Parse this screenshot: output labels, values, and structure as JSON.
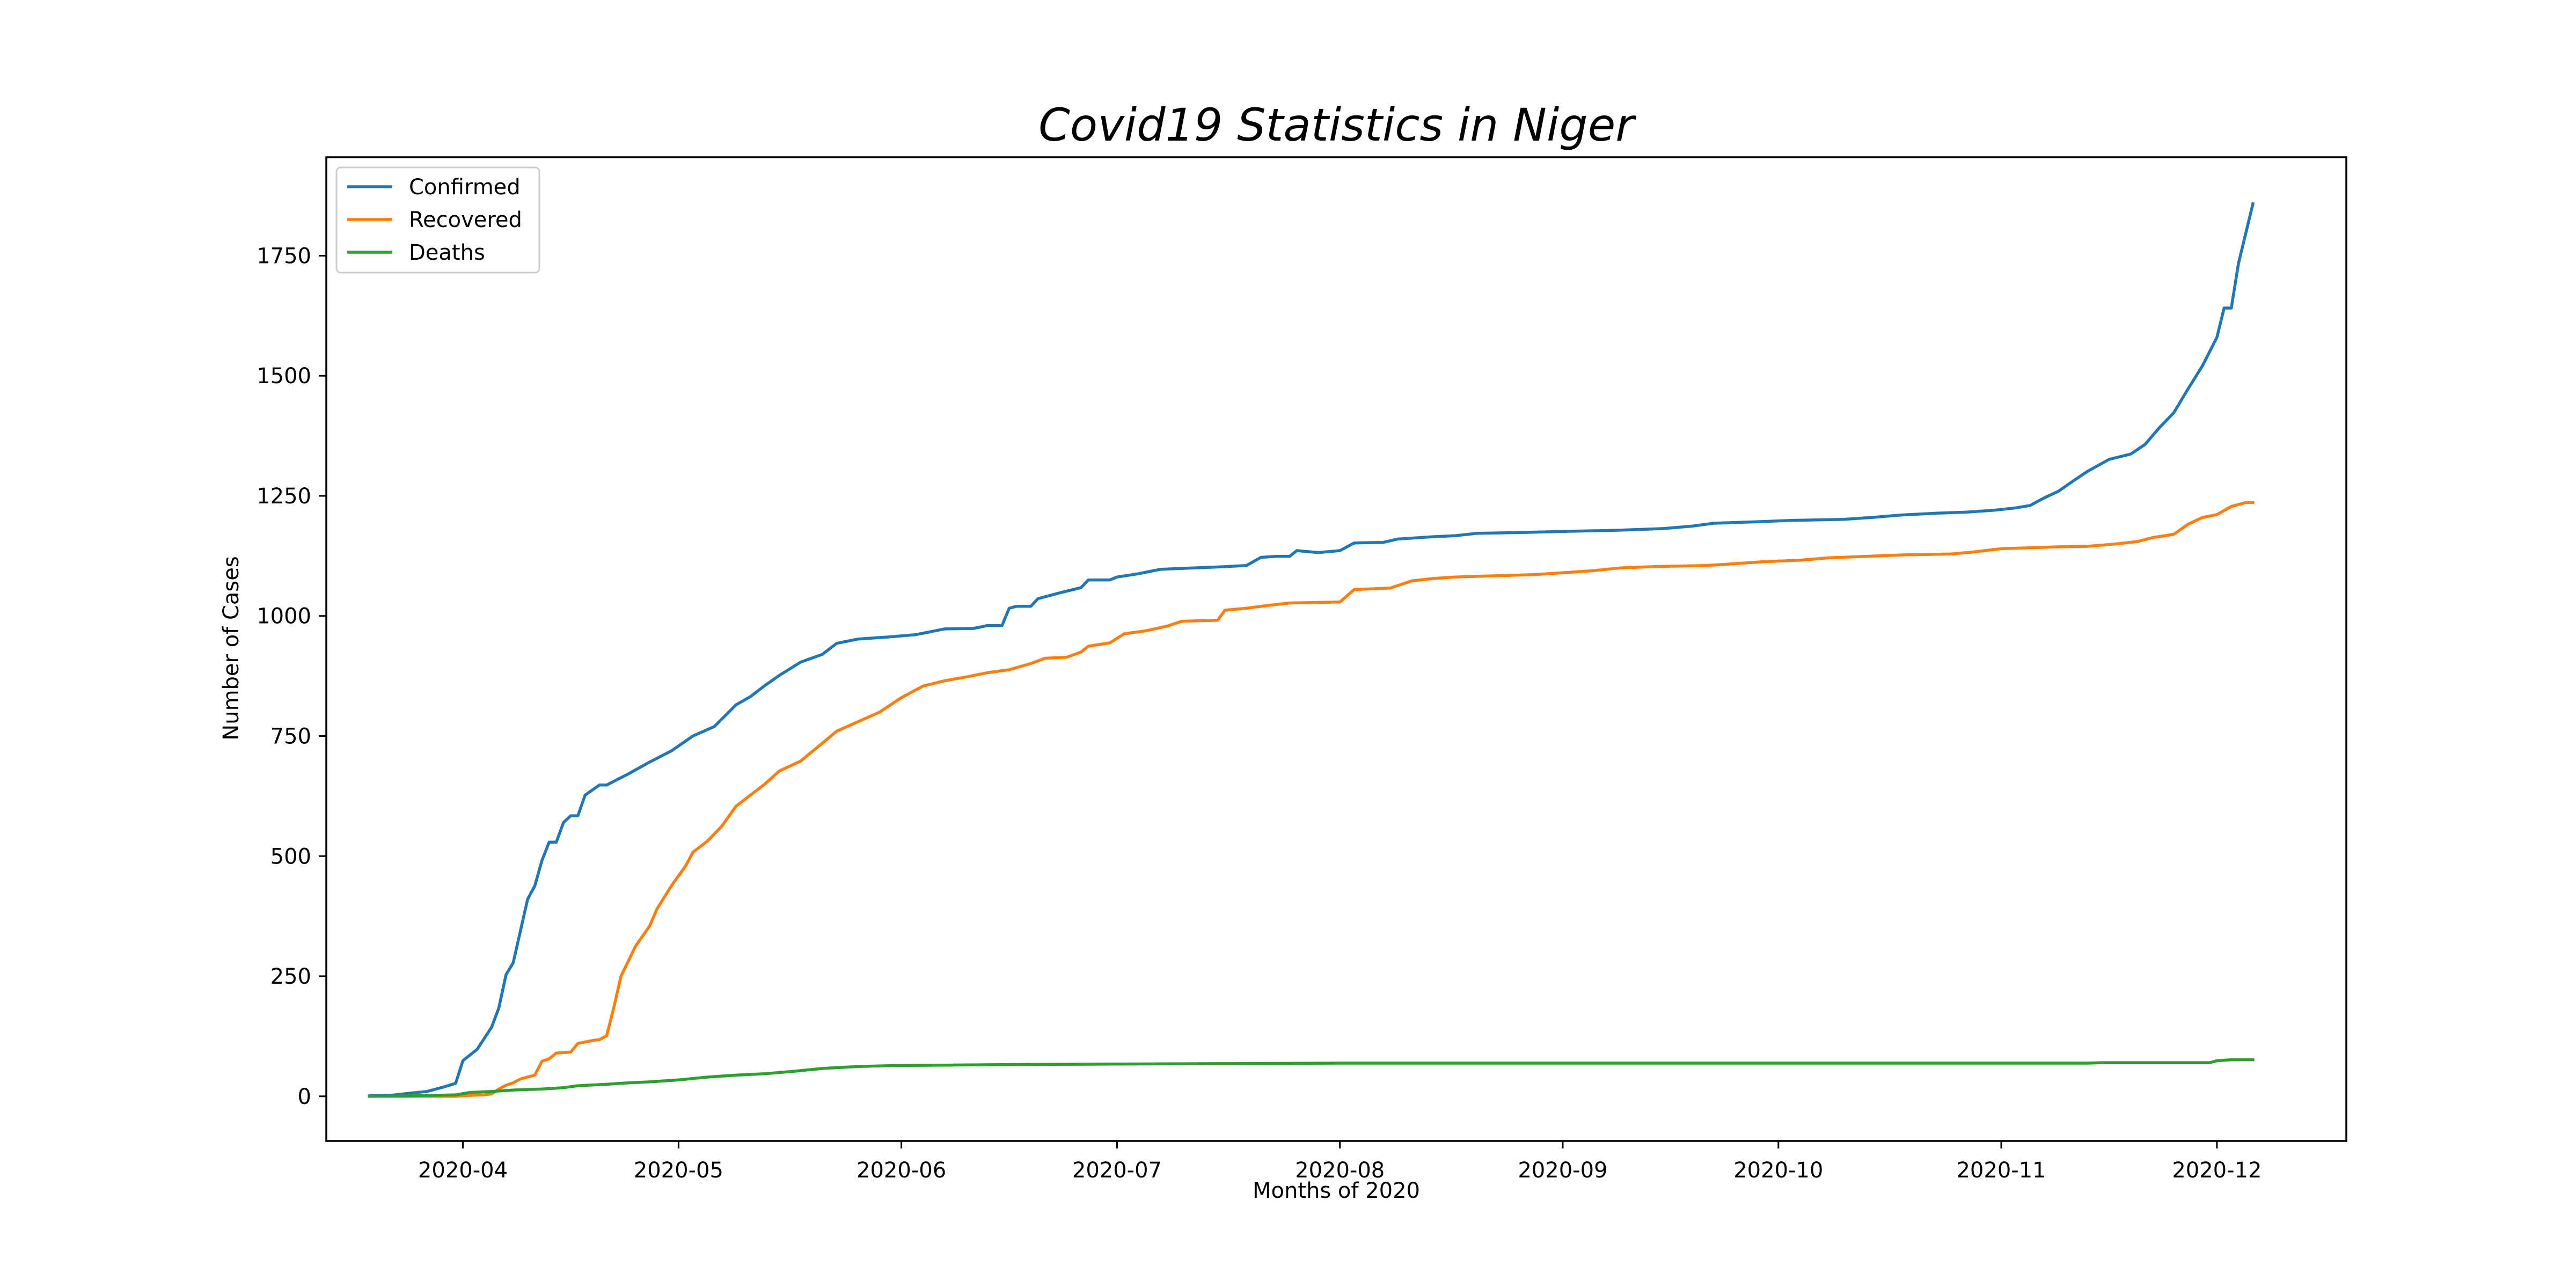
{
  "chart_data": {
    "type": "line",
    "title": "Covid19 Statistics in Niger",
    "xlabel": "Months of 2020",
    "ylabel": "Number of Cases",
    "x_type": "date",
    "xlim": [
      "2020-03-13",
      "2020-12-19"
    ],
    "ylim": [
      -93,
      1955
    ],
    "x_ticks": [
      "2020-04-01",
      "2020-05-01",
      "2020-06-01",
      "2020-07-01",
      "2020-08-01",
      "2020-09-01",
      "2020-10-01",
      "2020-11-01",
      "2020-12-01"
    ],
    "x_tick_labels": [
      "2020-04",
      "2020-05",
      "2020-06",
      "2020-07",
      "2020-08",
      "2020-09",
      "2020-10",
      "2020-11",
      "2020-12"
    ],
    "y_ticks": [
      0,
      250,
      500,
      750,
      1000,
      1250,
      1500,
      1750
    ],
    "y_tick_labels": [
      "0",
      "250",
      "500",
      "750",
      "1000",
      "1250",
      "1500",
      "1750"
    ],
    "grid": false,
    "legend_position": "top-left",
    "series": [
      {
        "name": "Confirmed",
        "color": "#1f77b4",
        "points": [
          [
            "2020-03-19",
            1
          ],
          [
            "2020-03-22",
            2
          ],
          [
            "2020-03-25",
            7
          ],
          [
            "2020-03-27",
            10
          ],
          [
            "2020-03-29",
            18
          ],
          [
            "2020-03-31",
            27
          ],
          [
            "2020-04-01",
            74
          ],
          [
            "2020-04-03",
            98
          ],
          [
            "2020-04-05",
            144
          ],
          [
            "2020-04-06",
            184
          ],
          [
            "2020-04-07",
            253
          ],
          [
            "2020-04-08",
            278
          ],
          [
            "2020-04-10",
            410
          ],
          [
            "2020-04-11",
            438
          ],
          [
            "2020-04-12",
            491
          ],
          [
            "2020-04-13",
            529
          ],
          [
            "2020-04-14",
            529
          ],
          [
            "2020-04-15",
            570
          ],
          [
            "2020-04-16",
            584
          ],
          [
            "2020-04-17",
            584
          ],
          [
            "2020-04-18",
            627
          ],
          [
            "2020-04-20",
            648
          ],
          [
            "2020-04-21",
            648
          ],
          [
            "2020-04-24",
            671
          ],
          [
            "2020-04-27",
            696
          ],
          [
            "2020-04-30",
            719
          ],
          [
            "2020-05-03",
            750
          ],
          [
            "2020-05-06",
            770
          ],
          [
            "2020-05-09",
            815
          ],
          [
            "2020-05-11",
            832
          ],
          [
            "2020-05-13",
            855
          ],
          [
            "2020-05-15",
            876
          ],
          [
            "2020-05-18",
            904
          ],
          [
            "2020-05-21",
            920
          ],
          [
            "2020-05-23",
            943
          ],
          [
            "2020-05-26",
            952
          ],
          [
            "2020-05-30",
            956
          ],
          [
            "2020-06-03",
            961
          ],
          [
            "2020-06-05",
            967
          ],
          [
            "2020-06-07",
            973
          ],
          [
            "2020-06-11",
            974
          ],
          [
            "2020-06-13",
            980
          ],
          [
            "2020-06-15",
            980
          ],
          [
            "2020-06-16",
            1016
          ],
          [
            "2020-06-17",
            1020
          ],
          [
            "2020-06-19",
            1020
          ],
          [
            "2020-06-20",
            1036
          ],
          [
            "2020-06-23",
            1048
          ],
          [
            "2020-06-26",
            1059
          ],
          [
            "2020-06-27",
            1075
          ],
          [
            "2020-06-30",
            1075
          ],
          [
            "2020-07-01",
            1081
          ],
          [
            "2020-07-04",
            1088
          ],
          [
            "2020-07-07",
            1097
          ],
          [
            "2020-07-10",
            1099
          ],
          [
            "2020-07-15",
            1102
          ],
          [
            "2020-07-19",
            1105
          ],
          [
            "2020-07-21",
            1122
          ],
          [
            "2020-07-23",
            1124
          ],
          [
            "2020-07-25",
            1124
          ],
          [
            "2020-07-26",
            1136
          ],
          [
            "2020-07-29",
            1132
          ],
          [
            "2020-08-01",
            1136
          ],
          [
            "2020-08-03",
            1152
          ],
          [
            "2020-08-07",
            1153
          ],
          [
            "2020-08-09",
            1160
          ],
          [
            "2020-08-14",
            1165
          ],
          [
            "2020-08-17",
            1167
          ],
          [
            "2020-08-20",
            1172
          ],
          [
            "2020-08-27",
            1174
          ],
          [
            "2020-09-01",
            1176
          ],
          [
            "2020-09-08",
            1178
          ],
          [
            "2020-09-15",
            1182
          ],
          [
            "2020-09-19",
            1187
          ],
          [
            "2020-09-22",
            1193
          ],
          [
            "2020-09-28",
            1196
          ],
          [
            "2020-10-03",
            1199
          ],
          [
            "2020-10-10",
            1201
          ],
          [
            "2020-10-14",
            1205
          ],
          [
            "2020-10-18",
            1210
          ],
          [
            "2020-10-23",
            1214
          ],
          [
            "2020-10-27",
            1216
          ],
          [
            "2020-10-31",
            1220
          ],
          [
            "2020-11-03",
            1225
          ],
          [
            "2020-11-05",
            1230
          ],
          [
            "2020-11-07",
            1246
          ],
          [
            "2020-11-09",
            1260
          ],
          [
            "2020-11-11",
            1281
          ],
          [
            "2020-11-13",
            1301
          ],
          [
            "2020-11-16",
            1326
          ],
          [
            "2020-11-19",
            1337
          ],
          [
            "2020-11-21",
            1357
          ],
          [
            "2020-11-23",
            1392
          ],
          [
            "2020-11-25",
            1423
          ],
          [
            "2020-11-27",
            1473
          ],
          [
            "2020-11-29",
            1521
          ],
          [
            "2020-12-01",
            1580
          ],
          [
            "2020-12-02",
            1641
          ],
          [
            "2020-12-03",
            1641
          ],
          [
            "2020-12-04",
            1734
          ],
          [
            "2020-12-06",
            1858
          ]
        ]
      },
      {
        "name": "Recovered",
        "color": "#ff7f0e",
        "points": [
          [
            "2020-03-19",
            0
          ],
          [
            "2020-03-31",
            0
          ],
          [
            "2020-04-02",
            2
          ],
          [
            "2020-04-04",
            3
          ],
          [
            "2020-04-05",
            5
          ],
          [
            "2020-04-06",
            15
          ],
          [
            "2020-04-07",
            23
          ],
          [
            "2020-04-08",
            28
          ],
          [
            "2020-04-09",
            36
          ],
          [
            "2020-04-11",
            44
          ],
          [
            "2020-04-12",
            73
          ],
          [
            "2020-04-13",
            78
          ],
          [
            "2020-04-14",
            90
          ],
          [
            "2020-04-16",
            92
          ],
          [
            "2020-04-17",
            110
          ],
          [
            "2020-04-19",
            116
          ],
          [
            "2020-04-20",
            118
          ],
          [
            "2020-04-21",
            126
          ],
          [
            "2020-04-22",
            185
          ],
          [
            "2020-04-23",
            250
          ],
          [
            "2020-04-25",
            312
          ],
          [
            "2020-04-27",
            355
          ],
          [
            "2020-04-28",
            390
          ],
          [
            "2020-04-30",
            438
          ],
          [
            "2020-05-02",
            480
          ],
          [
            "2020-05-03",
            508
          ],
          [
            "2020-05-05",
            531
          ],
          [
            "2020-05-07",
            562
          ],
          [
            "2020-05-09",
            604
          ],
          [
            "2020-05-11",
            627
          ],
          [
            "2020-05-13",
            650
          ],
          [
            "2020-05-15",
            677
          ],
          [
            "2020-05-18",
            698
          ],
          [
            "2020-05-21",
            735
          ],
          [
            "2020-05-23",
            760
          ],
          [
            "2020-05-26",
            780
          ],
          [
            "2020-05-29",
            800
          ],
          [
            "2020-06-01",
            830
          ],
          [
            "2020-06-04",
            854
          ],
          [
            "2020-06-07",
            865
          ],
          [
            "2020-06-10",
            873
          ],
          [
            "2020-06-13",
            882
          ],
          [
            "2020-06-16",
            888
          ],
          [
            "2020-06-19",
            901
          ],
          [
            "2020-06-21",
            912
          ],
          [
            "2020-06-24",
            914
          ],
          [
            "2020-06-26",
            925
          ],
          [
            "2020-06-27",
            937
          ],
          [
            "2020-06-30",
            944
          ],
          [
            "2020-07-02",
            963
          ],
          [
            "2020-07-05",
            969
          ],
          [
            "2020-07-08",
            979
          ],
          [
            "2020-07-10",
            989
          ],
          [
            "2020-07-15",
            991
          ],
          [
            "2020-07-16",
            1012
          ],
          [
            "2020-07-19",
            1016
          ],
          [
            "2020-07-22",
            1022
          ],
          [
            "2020-07-25",
            1027
          ],
          [
            "2020-08-01",
            1029
          ],
          [
            "2020-08-03",
            1055
          ],
          [
            "2020-08-08",
            1058
          ],
          [
            "2020-08-11",
            1073
          ],
          [
            "2020-08-14",
            1078
          ],
          [
            "2020-08-17",
            1081
          ],
          [
            "2020-08-21",
            1083
          ],
          [
            "2020-08-28",
            1086
          ],
          [
            "2020-09-01",
            1090
          ],
          [
            "2020-09-05",
            1094
          ],
          [
            "2020-09-09",
            1100
          ],
          [
            "2020-09-14",
            1103
          ],
          [
            "2020-09-21",
            1105
          ],
          [
            "2020-09-25",
            1109
          ],
          [
            "2020-09-29",
            1113
          ],
          [
            "2020-10-04",
            1116
          ],
          [
            "2020-10-08",
            1121
          ],
          [
            "2020-10-13",
            1124
          ],
          [
            "2020-10-18",
            1127
          ],
          [
            "2020-10-25",
            1129
          ],
          [
            "2020-10-28",
            1133
          ],
          [
            "2020-11-01",
            1140
          ],
          [
            "2020-11-05",
            1142
          ],
          [
            "2020-11-09",
            1144
          ],
          [
            "2020-11-13",
            1145
          ],
          [
            "2020-11-17",
            1150
          ],
          [
            "2020-11-20",
            1155
          ],
          [
            "2020-11-22",
            1163
          ],
          [
            "2020-11-25",
            1170
          ],
          [
            "2020-11-27",
            1191
          ],
          [
            "2020-11-29",
            1205
          ],
          [
            "2020-12-01",
            1211
          ],
          [
            "2020-12-03",
            1228
          ],
          [
            "2020-12-05",
            1236
          ],
          [
            "2020-12-06",
            1236
          ]
        ]
      },
      {
        "name": "Deaths",
        "color": "#2ca02c",
        "points": [
          [
            "2020-03-19",
            0
          ],
          [
            "2020-03-25",
            1
          ],
          [
            "2020-03-31",
            3
          ],
          [
            "2020-04-02",
            8
          ],
          [
            "2020-04-05",
            10
          ],
          [
            "2020-04-08",
            13
          ],
          [
            "2020-04-12",
            15
          ],
          [
            "2020-04-15",
            18
          ],
          [
            "2020-04-17",
            22
          ],
          [
            "2020-04-21",
            25
          ],
          [
            "2020-04-24",
            28
          ],
          [
            "2020-04-27",
            30
          ],
          [
            "2020-05-01",
            34
          ],
          [
            "2020-05-05",
            40
          ],
          [
            "2020-05-09",
            44
          ],
          [
            "2020-05-13",
            47
          ],
          [
            "2020-05-17",
            52
          ],
          [
            "2020-05-21",
            58
          ],
          [
            "2020-05-26",
            62
          ],
          [
            "2020-05-31",
            64
          ],
          [
            "2020-06-08",
            65
          ],
          [
            "2020-06-15",
            66
          ],
          [
            "2020-06-30",
            67
          ],
          [
            "2020-07-15",
            68
          ],
          [
            "2020-08-01",
            69
          ],
          [
            "2020-09-01",
            69
          ],
          [
            "2020-10-01",
            69
          ],
          [
            "2020-11-01",
            69
          ],
          [
            "2020-11-13",
            69
          ],
          [
            "2020-11-15",
            70
          ],
          [
            "2020-11-30",
            70
          ],
          [
            "2020-12-01",
            74
          ],
          [
            "2020-12-03",
            76
          ],
          [
            "2020-12-06",
            76
          ]
        ]
      }
    ]
  }
}
